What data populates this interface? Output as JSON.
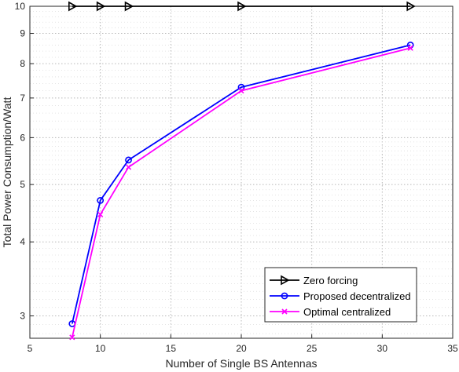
{
  "chart_data": {
    "type": "line",
    "xlabel": "Number of Single BS Antennas",
    "ylabel": "Total Power Consumption/Watt",
    "xlim": [
      5,
      35
    ],
    "ylim": [
      2.75,
      10
    ],
    "yscale": "log",
    "grid": true,
    "minor_grid": true,
    "legend_position": "bottom-right",
    "xticks": [
      5,
      10,
      15,
      20,
      25,
      30,
      35
    ],
    "xtick_labels": [
      "5",
      "10",
      "15",
      "20",
      "25",
      "30",
      "35"
    ],
    "yticks": [
      3,
      4,
      5,
      6,
      7,
      8,
      9,
      10
    ],
    "ytick_labels": [
      "3",
      "4",
      "5",
      "6",
      "7",
      "8",
      "9",
      "10"
    ],
    "series": [
      {
        "name": "Zero forcing",
        "color": "#000000",
        "marker": "triangle-right",
        "x": [
          8,
          10,
          12,
          20,
          32
        ],
        "y": [
          10,
          10,
          10,
          10,
          10
        ]
      },
      {
        "name": "Proposed decentralized",
        "color": "#0000ff",
        "marker": "circle",
        "x": [
          8,
          10,
          12,
          20,
          32
        ],
        "y": [
          2.91,
          4.7,
          5.5,
          7.3,
          8.6
        ]
      },
      {
        "name": "Optimal centralized",
        "color": "#ff00ff",
        "marker": "x",
        "x": [
          8,
          10,
          12,
          20,
          32
        ],
        "y": [
          2.76,
          4.45,
          5.35,
          7.2,
          8.5
        ]
      }
    ]
  }
}
